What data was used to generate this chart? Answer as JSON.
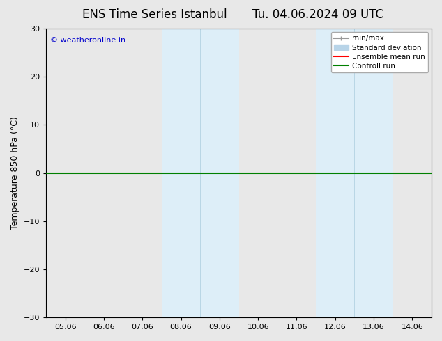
{
  "title_left": "ENS Time Series Istanbul",
  "title_right": "Tu. 04.06.2024 09 UTC",
  "ylabel": "Temperature 850 hPa (°C)",
  "ylim": [
    -30,
    30
  ],
  "yticks": [
    -30,
    -20,
    -10,
    0,
    10,
    20,
    30
  ],
  "xtick_labels": [
    "05.06",
    "06.06",
    "07.06",
    "08.06",
    "09.06",
    "10.06",
    "11.06",
    "12.06",
    "13.06",
    "14.06"
  ],
  "shaded_bands": [
    {
      "xmin": 3.0,
      "xmax": 4.0,
      "color": "#ddeef8"
    },
    {
      "xmin": 4.0,
      "xmax": 5.0,
      "color": "#ddeef8"
    },
    {
      "xmin": 7.0,
      "xmax": 8.0,
      "color": "#ddeef8"
    },
    {
      "xmin": 8.0,
      "xmax": 9.0,
      "color": "#ddeef8"
    }
  ],
  "divider_lines": [
    4.0,
    8.0
  ],
  "green_line_y": 0.0,
  "background_color": "#e8e8e8",
  "plot_bg_color": "#e8e8e8",
  "legend_entries": [
    {
      "label": "min/max",
      "color": "#999999",
      "lw": 1.5
    },
    {
      "label": "Standard deviation",
      "color": "#b8d4e8",
      "lw": 6
    },
    {
      "label": "Ensemble mean run",
      "color": "#ff0000",
      "lw": 1.5
    },
    {
      "label": "Controll run",
      "color": "#008000",
      "lw": 1.5
    }
  ],
  "watermark": "© weatheronline.in",
  "watermark_color": "#0000cc",
  "watermark_fontsize": 8,
  "title_fontsize": 12,
  "axis_fontsize": 8,
  "ylabel_fontsize": 9
}
